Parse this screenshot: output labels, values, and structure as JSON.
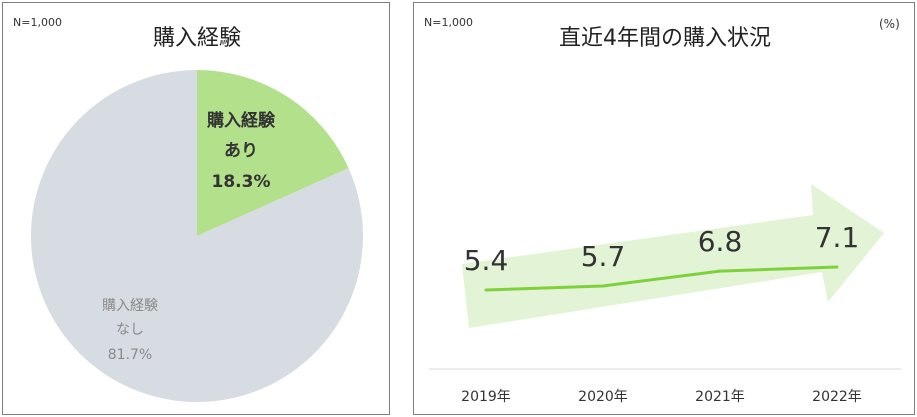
{
  "chart_data": [
    {
      "type": "pie",
      "title": "購入経験",
      "sample_size": "N=1,000",
      "slices": [
        {
          "label_line1": "購入経験",
          "label_line2": "あり",
          "value": 18.3,
          "value_label": "18.3%",
          "color": "#b3e08a"
        },
        {
          "label_line1": "購入経験",
          "label_line2": "なし",
          "value": 81.7,
          "value_label": "81.7%",
          "color": "#d7dbe2"
        }
      ]
    },
    {
      "type": "line",
      "title": "直近4年間の購入状況",
      "sample_size": "N=1,000",
      "unit": "(%)",
      "categories": [
        "2019年",
        "2020年",
        "2021年",
        "2022年"
      ],
      "series": [
        {
          "values": [
            5.4,
            5.7,
            6.8,
            7.1
          ],
          "color": "#7fd13b"
        }
      ],
      "data_labels": [
        "5.4",
        "5.7",
        "6.8",
        "7.1"
      ],
      "grid": false,
      "arrow_color": "#e2f4d5"
    }
  ]
}
